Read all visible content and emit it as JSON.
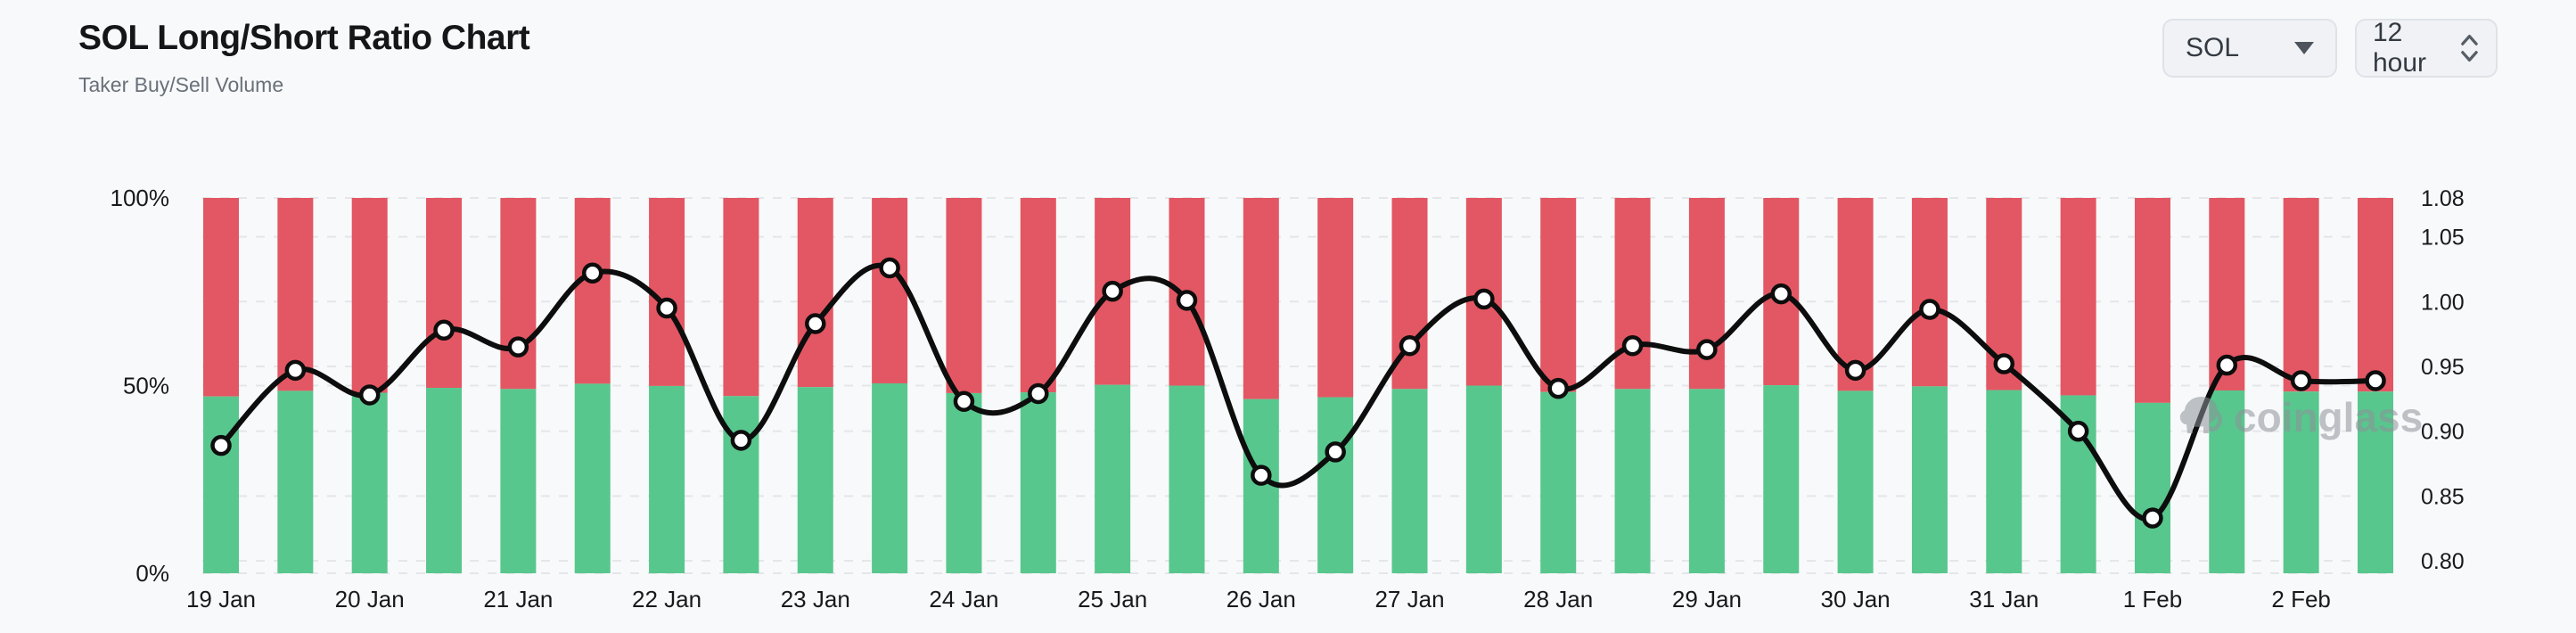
{
  "header": {
    "title": "SOL Long/Short Ratio Chart",
    "subtitle": "Taker Buy/Sell Volume"
  },
  "controls": {
    "symbol": {
      "value": "SOL",
      "icon": "caret-down-icon"
    },
    "interval": {
      "value": "12 hour",
      "icon": "stepper-chevrons-icon"
    }
  },
  "watermark": {
    "text": "coinglass"
  },
  "colors": {
    "background": "#f8f9fa",
    "buy_green": "#58c78d",
    "sell_red": "#e25763",
    "ratio_line": "#0d0d0d",
    "marker_fill": "#ffffff",
    "grid": "#e4e6e9",
    "axis_text": "#17191d",
    "subtitle_text": "#697079"
  },
  "chart_data": {
    "type": "bar",
    "subtype": "stacked-percent-bars-with-ratio-line",
    "bars_per_day": 2,
    "categories_days": [
      "19 Jan",
      "20 Jan",
      "21 Jan",
      "22 Jan",
      "23 Jan",
      "24 Jan",
      "25 Jan",
      "26 Jan",
      "27 Jan",
      "28 Jan",
      "29 Jan",
      "30 Jan",
      "31 Jan",
      "1 Feb",
      "2 Feb"
    ],
    "series": [
      {
        "name": "Taker Buy Volume %",
        "type": "bar",
        "color": "#58c78d",
        "values": [
          47.1,
          48.6,
          48.1,
          49.4,
          49.1,
          50.5,
          49.9,
          47.2,
          49.6,
          50.6,
          48.0,
          48.2,
          50.2,
          50.0,
          46.4,
          46.9,
          49.1,
          50.0,
          48.3,
          49.1,
          49.1,
          50.1,
          48.6,
          49.8,
          48.8,
          47.4,
          45.4,
          48.7,
          48.4,
          48.4
        ]
      },
      {
        "name": "Taker Sell Volume %",
        "type": "bar",
        "color": "#e25763",
        "values": [
          52.9,
          51.4,
          51.9,
          50.6,
          50.9,
          49.5,
          50.1,
          52.8,
          50.4,
          49.4,
          52.0,
          51.8,
          49.8,
          50.0,
          53.6,
          53.1,
          50.9,
          50.0,
          51.7,
          50.9,
          50.9,
          49.9,
          51.4,
          50.2,
          51.2,
          52.6,
          54.6,
          51.3,
          51.6,
          51.6
        ]
      },
      {
        "name": "Long/Short Ratio",
        "type": "line",
        "color": "#0d0d0d",
        "values": [
          0.889,
          0.947,
          0.928,
          0.978,
          0.965,
          1.022,
          0.995,
          0.893,
          0.983,
          1.026,
          0.923,
          0.929,
          1.008,
          1.001,
          0.866,
          0.884,
          0.966,
          1.002,
          0.933,
          0.966,
          0.963,
          1.006,
          0.947,
          0.994,
          0.952,
          0.9,
          0.833,
          0.951,
          0.939,
          0.939
        ]
      }
    ],
    "left_axis": {
      "ticks": [
        {
          "label": "100%",
          "value": 100
        },
        {
          "label": "50%",
          "value": 50
        },
        {
          "label": "0%",
          "value": 0
        }
      ],
      "range": [
        0,
        100
      ]
    },
    "right_axis": {
      "ticks": [
        "1.08",
        "1.05",
        "1.00",
        "0.95",
        "0.90",
        "0.85",
        "0.80"
      ],
      "top_value": 1.08,
      "bottom_value": 0.8
    },
    "grid": "horizontal-dashed",
    "legend": "none"
  }
}
